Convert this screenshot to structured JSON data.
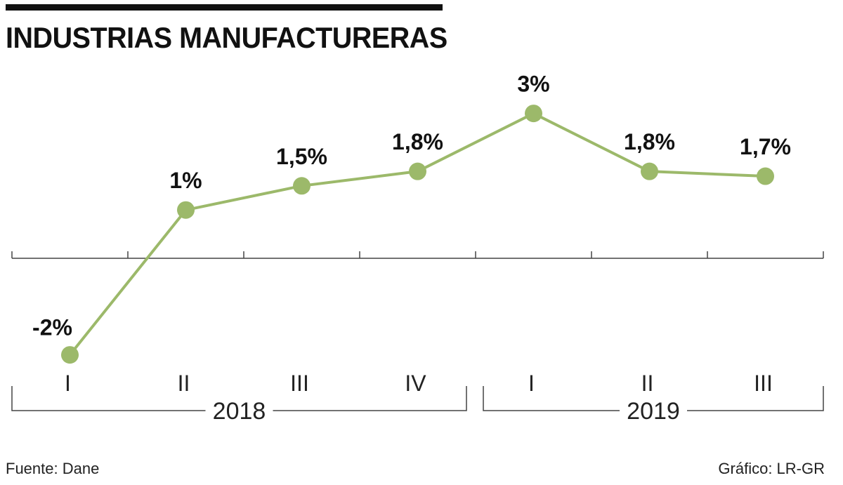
{
  "chart_data": {
    "type": "line",
    "title": "INDUSTRIAS MANUFACTURERAS",
    "categories": [
      "I",
      "II",
      "III",
      "IV",
      "I",
      "II",
      "III"
    ],
    "groups": [
      {
        "label": "2018",
        "categories": [
          "I",
          "II",
          "III",
          "IV"
        ]
      },
      {
        "label": "2019",
        "categories": [
          "I",
          "II",
          "III"
        ]
      }
    ],
    "series": [
      {
        "name": "Industrias manufactureras",
        "values": [
          -2,
          1,
          1.5,
          1.8,
          3,
          1.8,
          1.7
        ],
        "data_labels": [
          "-2%",
          "1%",
          "1,5%",
          "1,8%",
          "3%",
          "1,8%",
          "1,7%"
        ]
      }
    ],
    "ylim": [
      -2.3,
      3.5
    ],
    "zero_line": true,
    "grid": false,
    "xlabel": "",
    "ylabel": "",
    "colors": {
      "line": "#9cb96a",
      "marker": "#9cb96a",
      "axis": "#444444"
    }
  },
  "source": "Fuente: Dane",
  "credit": "Gráfico: LR-GR"
}
